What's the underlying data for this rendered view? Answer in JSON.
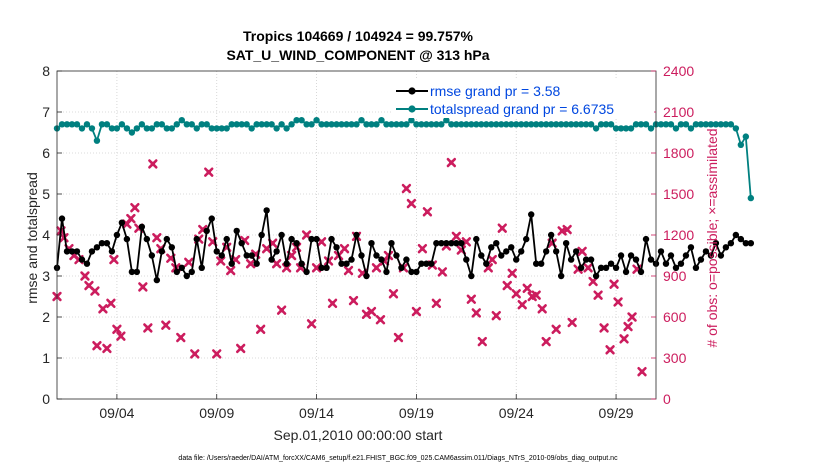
{
  "chart_data": {
    "type": "line",
    "title_line1": "Tropics 104669 / 104924 = 99.757%",
    "title_line2": "SAT_U_WIND_COMPONENT @ 313 hPa",
    "xlabel": "Sep.01,2010 00:00:00 start",
    "ylabel_left": "rmse and totalspread",
    "ylabel_right": "# of obs: o=possible; ×=assimilated",
    "footnote": "data file: /Users/raeder/DAI/ATM_forcXX/CAM6_setup/f.e21.FHIST_BGC.f09_025.CAM6assim.011/Diags_NTrS_2010-09/obs_diag_output.nc",
    "xlim": [
      1.0,
      31.0
    ],
    "ylim_left": [
      0,
      8
    ],
    "ylim_right": [
      0,
      2400
    ],
    "x_ticks": [
      4,
      9,
      14,
      19,
      24,
      29
    ],
    "x_tick_labels": [
      "09/04",
      "09/09",
      "09/14",
      "09/19",
      "09/24",
      "09/29"
    ],
    "y_left_ticks": [
      "0",
      "1",
      "2",
      "3",
      "4",
      "5",
      "6",
      "7",
      "8"
    ],
    "y_right_ticks": [
      "0",
      "300",
      "600",
      "900",
      "1200",
      "1500",
      "1800",
      "2100",
      "2400"
    ],
    "colors": {
      "rmse": "#000000",
      "spread": "#008080",
      "obs": "#cc1d5e",
      "legend_text": "#0047e0"
    },
    "legend": [
      {
        "name": "rmse grand pr = 3.58",
        "color": "#000000"
      },
      {
        "name": "totalspread grand pr = 6.6735",
        "color": "#008080"
      }
    ],
    "x_start": 1.0,
    "x_step": 0.25,
    "series": [
      {
        "name": "rmse",
        "values": [
          3.2,
          4.4,
          3.6,
          3.6,
          3.6,
          3.4,
          3.3,
          3.6,
          3.7,
          3.8,
          3.8,
          3.6,
          4.0,
          4.3,
          3.9,
          3.1,
          3.1,
          4.2,
          3.9,
          3.5,
          2.9,
          3.6,
          3.9,
          3.7,
          3.1,
          3.2,
          3.0,
          3.1,
          3.9,
          3.2,
          4.1,
          4.4,
          3.6,
          3.5,
          3.9,
          3.3,
          4.1,
          3.8,
          3.5,
          3.5,
          3.3,
          4.0,
          4.6,
          3.4,
          3.6,
          4.0,
          3.3,
          3.9,
          3.8,
          3.3,
          3.1,
          3.9,
          3.9,
          3.2,
          3.2,
          3.9,
          3.7,
          3.3,
          3.3,
          3.4,
          4.0,
          3.5,
          3.0,
          3.8,
          3.5,
          3.4,
          3.1,
          3.8,
          3.5,
          3.2,
          3.4,
          3.1,
          3.1,
          3.3,
          3.3,
          3.3,
          3.8,
          3.8,
          3.8,
          3.8,
          3.8,
          3.8,
          3.4,
          3.0,
          3.9,
          3.5,
          3.3,
          3.7,
          3.8,
          3.5,
          3.6,
          3.7,
          3.4,
          3.6,
          3.9,
          4.5,
          3.3,
          3.3,
          3.6,
          4.0,
          3.6,
          3.0,
          3.8,
          3.4,
          3.6,
          3.2,
          3.4,
          3.4,
          3.0,
          3.2,
          3.2,
          3.3,
          3.2,
          3.5,
          3.1,
          3.5,
          3.4,
          3.1,
          3.9,
          3.4,
          3.3,
          3.6,
          3.3,
          3.5,
          3.2,
          3.3,
          3.5,
          3.7,
          3.2,
          3.4,
          3.6,
          3.5,
          3.8,
          3.5,
          3.7,
          3.8,
          4.0,
          3.9,
          3.8,
          3.8
        ]
      },
      {
        "name": "totalspread",
        "values": [
          6.6,
          6.7,
          6.7,
          6.7,
          6.7,
          6.6,
          6.7,
          6.6,
          6.3,
          6.7,
          6.7,
          6.6,
          6.6,
          6.7,
          6.6,
          6.5,
          6.6,
          6.7,
          6.6,
          6.6,
          6.7,
          6.7,
          6.6,
          6.6,
          6.7,
          6.8,
          6.7,
          6.7,
          6.6,
          6.7,
          6.7,
          6.6,
          6.6,
          6.6,
          6.6,
          6.7,
          6.7,
          6.7,
          6.7,
          6.6,
          6.7,
          6.7,
          6.7,
          6.7,
          6.6,
          6.7,
          6.6,
          6.7,
          6.8,
          6.8,
          6.7,
          6.7,
          6.8,
          6.7,
          6.7,
          6.7,
          6.7,
          6.7,
          6.7,
          6.7,
          6.7,
          6.8,
          6.7,
          6.7,
          6.7,
          6.8,
          6.7,
          6.7,
          6.7,
          6.7,
          6.7,
          6.8,
          6.7,
          6.7,
          6.7,
          6.7,
          6.7,
          6.7,
          6.8,
          6.7,
          6.7,
          6.7,
          6.7,
          6.7,
          6.7,
          6.7,
          6.7,
          6.7,
          6.7,
          6.7,
          6.7,
          6.7,
          6.7,
          6.7,
          6.7,
          6.7,
          6.7,
          6.7,
          6.7,
          6.7,
          6.7,
          6.7,
          6.7,
          6.7,
          6.7,
          6.7,
          6.7,
          6.7,
          6.6,
          6.7,
          6.7,
          6.7,
          6.6,
          6.6,
          6.6,
          6.6,
          6.7,
          6.7,
          6.7,
          6.6,
          6.7,
          6.7,
          6.7,
          6.7,
          6.6,
          6.7,
          6.7,
          6.6,
          6.7,
          6.7,
          6.7,
          6.7,
          6.7,
          6.7,
          6.7,
          6.7,
          6.6,
          6.2,
          6.4,
          4.9
        ]
      }
    ],
    "obs_possible_axis": "right",
    "obs_assimilated": [
      [
        1.0,
        750
      ],
      [
        1.2,
        1230
      ],
      [
        1.35,
        1180
      ],
      [
        1.6,
        1100
      ],
      [
        1.85,
        1050
      ],
      [
        2.1,
        1020
      ],
      [
        2.4,
        900
      ],
      [
        2.6,
        830
      ],
      [
        2.9,
        790
      ],
      [
        3.0,
        390
      ],
      [
        3.3,
        660
      ],
      [
        3.5,
        370
      ],
      [
        3.7,
        700
      ],
      [
        3.85,
        1020
      ],
      [
        4.0,
        510
      ],
      [
        4.2,
        460
      ],
      [
        4.5,
        1280
      ],
      [
        4.7,
        1320
      ],
      [
        4.9,
        1400
      ],
      [
        5.1,
        1250
      ],
      [
        5.3,
        820
      ],
      [
        5.55,
        520
      ],
      [
        5.8,
        1720
      ],
      [
        6.0,
        1180
      ],
      [
        6.2,
        1100
      ],
      [
        6.45,
        540
      ],
      [
        6.7,
        1030
      ],
      [
        6.95,
        960
      ],
      [
        7.2,
        450
      ],
      [
        7.6,
        1000
      ],
      [
        7.9,
        330
      ],
      [
        8.1,
        1170
      ],
      [
        8.3,
        1240
      ],
      [
        8.6,
        1660
      ],
      [
        8.8,
        1150
      ],
      [
        9.0,
        330
      ],
      [
        9.2,
        1010
      ],
      [
        9.5,
        1110
      ],
      [
        9.7,
        940
      ],
      [
        9.95,
        1020
      ],
      [
        10.2,
        370
      ],
      [
        10.4,
        1160
      ],
      [
        10.7,
        990
      ],
      [
        10.95,
        1060
      ],
      [
        11.2,
        510
      ],
      [
        11.5,
        1100
      ],
      [
        11.8,
        1140
      ],
      [
        12.0,
        990
      ],
      [
        12.25,
        650
      ],
      [
        12.5,
        960
      ],
      [
        12.75,
        1050
      ],
      [
        13.0,
        1110
      ],
      [
        13.2,
        960
      ],
      [
        13.5,
        1200
      ],
      [
        13.75,
        550
      ],
      [
        14.0,
        960
      ],
      [
        14.25,
        1150
      ],
      [
        14.6,
        1010
      ],
      [
        14.8,
        700
      ],
      [
        15.1,
        1050
      ],
      [
        15.4,
        1100
      ],
      [
        15.6,
        940
      ],
      [
        15.85,
        720
      ],
      [
        16.0,
        1190
      ],
      [
        16.3,
        920
      ],
      [
        16.5,
        620
      ],
      [
        16.75,
        640
      ],
      [
        17.0,
        960
      ],
      [
        17.2,
        580
      ],
      [
        17.4,
        1010
      ],
      [
        17.6,
        1050
      ],
      [
        17.85,
        770
      ],
      [
        18.1,
        450
      ],
      [
        18.35,
        960
      ],
      [
        18.5,
        1540
      ],
      [
        18.75,
        1430
      ],
      [
        19.0,
        640
      ],
      [
        19.3,
        1100
      ],
      [
        19.55,
        1370
      ],
      [
        19.8,
        980
      ],
      [
        20.0,
        700
      ],
      [
        20.3,
        930
      ],
      [
        20.5,
        1120
      ],
      [
        20.75,
        1730
      ],
      [
        21.0,
        1190
      ],
      [
        21.25,
        1090
      ],
      [
        21.5,
        1150
      ],
      [
        21.75,
        730
      ],
      [
        22.0,
        630
      ],
      [
        22.3,
        420
      ],
      [
        22.6,
        960
      ],
      [
        22.8,
        1020
      ],
      [
        23.0,
        610
      ],
      [
        23.3,
        1250
      ],
      [
        23.55,
        830
      ],
      [
        23.8,
        920
      ],
      [
        24.0,
        770
      ],
      [
        24.3,
        690
      ],
      [
        24.55,
        810
      ],
      [
        24.8,
        750
      ],
      [
        25.0,
        760
      ],
      [
        25.3,
        660
      ],
      [
        25.5,
        420
      ],
      [
        25.8,
        1140
      ],
      [
        26.0,
        510
      ],
      [
        26.3,
        1230
      ],
      [
        26.55,
        1240
      ],
      [
        26.8,
        560
      ],
      [
        27.1,
        950
      ],
      [
        27.3,
        1080
      ],
      [
        27.6,
        960
      ],
      [
        27.85,
        860
      ],
      [
        28.1,
        760
      ],
      [
        28.4,
        520
      ],
      [
        28.7,
        360
      ],
      [
        28.9,
        840
      ],
      [
        29.1,
        710
      ],
      [
        29.4,
        440
      ],
      [
        29.6,
        530
      ],
      [
        29.8,
        600
      ],
      [
        30.05,
        950
      ],
      [
        30.3,
        200
      ]
    ],
    "obs_note": "no possible-obs (o) markers visible; only assimilated (×) markers drawn"
  }
}
